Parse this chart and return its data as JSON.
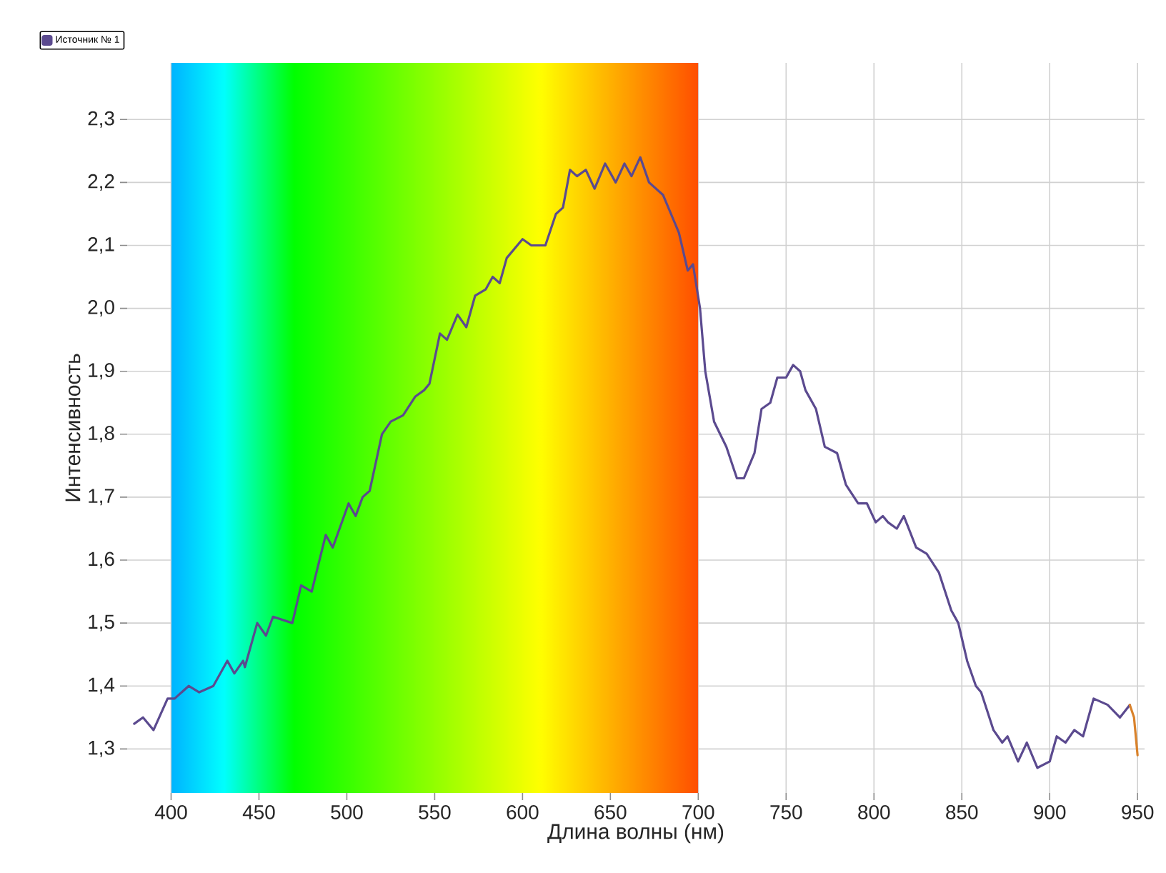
{
  "chart_data": {
    "type": "line",
    "xlabel": "Длина волны (нм)",
    "ylabel": "Интенсивность",
    "xlim": [
      375,
      954
    ],
    "ylim": [
      1.23,
      2.39
    ],
    "xticks": [
      400,
      450,
      500,
      550,
      600,
      650,
      700,
      750,
      800,
      850,
      900,
      950
    ],
    "yticks": [
      {
        "value": 1.3,
        "label": "1,3"
      },
      {
        "value": 1.4,
        "label": "1,4"
      },
      {
        "value": 1.5,
        "label": "1,5"
      },
      {
        "value": 1.6,
        "label": "1,6"
      },
      {
        "value": 1.7,
        "label": "1,7"
      },
      {
        "value": 1.8,
        "label": "1,8"
      },
      {
        "value": 1.9,
        "label": "1,9"
      },
      {
        "value": 2.0,
        "label": "2,0"
      },
      {
        "value": 2.1,
        "label": "2,1"
      },
      {
        "value": 2.2,
        "label": "2,2"
      },
      {
        "value": 2.3,
        "label": "2,3"
      }
    ],
    "grid": true,
    "legend": "top left",
    "marker": "none",
    "line_style": "solid",
    "bands": [
      {
        "axis": "x",
        "from": 400,
        "to": 700
      }
    ],
    "series": [
      {
        "name": "Источник № 1",
        "color": "#5b4a8f",
        "x": [
          379,
          384,
          390,
          398,
          402,
          410,
          416,
          424,
          432,
          436,
          441,
          442,
          449,
          454,
          458,
          469,
          474,
          480,
          488,
          492,
          501,
          505,
          509,
          513,
          520,
          525,
          532,
          539,
          544,
          547,
          553,
          557,
          563,
          568,
          573,
          579,
          583,
          587,
          591,
          600,
          605,
          613,
          619,
          623,
          627,
          631,
          636,
          641,
          647,
          653,
          658,
          662,
          667,
          672,
          680,
          686,
          689,
          694,
          697,
          701,
          704,
          709,
          716,
          722,
          726,
          732,
          736,
          741,
          745,
          750,
          754,
          758,
          761,
          767,
          772,
          779,
          784,
          791,
          796,
          801,
          805,
          808,
          813,
          817,
          824,
          830,
          837,
          844,
          848,
          853,
          858,
          861,
          868,
          873,
          876,
          882,
          887,
          893,
          900,
          904,
          909,
          914,
          919,
          925,
          933,
          940,
          945.6
        ],
        "values": [
          1.34,
          1.35,
          1.33,
          1.38,
          1.38,
          1.4,
          1.39,
          1.4,
          1.44,
          1.42,
          1.44,
          1.43,
          1.5,
          1.48,
          1.51,
          1.5,
          1.56,
          1.55,
          1.64,
          1.62,
          1.69,
          1.67,
          1.7,
          1.71,
          1.8,
          1.82,
          1.83,
          1.86,
          1.87,
          1.88,
          1.96,
          1.95,
          1.99,
          1.97,
          2.02,
          2.03,
          2.05,
          2.04,
          2.08,
          2.11,
          2.1,
          2.1,
          2.15,
          2.16,
          2.22,
          2.21,
          2.22,
          2.19,
          2.23,
          2.2,
          2.23,
          2.21,
          2.24,
          2.2,
          2.18,
          2.14,
          2.12,
          2.06,
          2.07,
          2.0,
          1.9,
          1.82,
          1.78,
          1.73,
          1.73,
          1.77,
          1.84,
          1.85,
          1.89,
          1.89,
          1.91,
          1.9,
          1.87,
          1.84,
          1.78,
          1.77,
          1.72,
          1.69,
          1.69,
          1.66,
          1.67,
          1.66,
          1.65,
          1.67,
          1.62,
          1.61,
          1.58,
          1.52,
          1.5,
          1.44,
          1.4,
          1.39,
          1.33,
          1.31,
          1.32,
          1.28,
          1.31,
          1.27,
          1.28,
          1.32,
          1.31,
          1.33,
          1.32,
          1.38,
          1.37,
          1.35,
          1.37
        ]
      },
      {
        "color": "#d9822b",
        "x": [
          945.6,
          948,
          950
        ],
        "values": [
          1.37,
          1.35,
          1.29
        ]
      }
    ]
  }
}
